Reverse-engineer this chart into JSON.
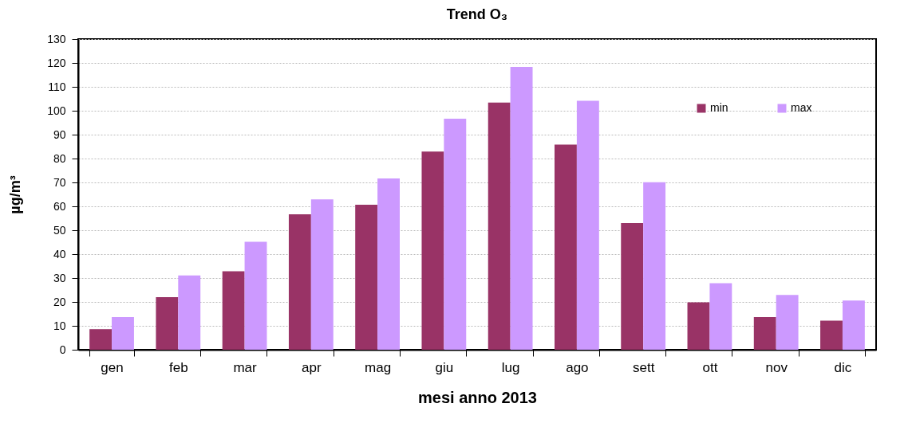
{
  "chart_data": {
    "type": "bar",
    "title": "Trend O₃",
    "xlabel": "mesi anno 2013",
    "ylabel": "µg/m³",
    "categories": [
      "gen",
      "feb",
      "mar",
      "apr",
      "mag",
      "giu",
      "lug",
      "ago",
      "sett",
      "ott",
      "nov",
      "dic"
    ],
    "series": [
      {
        "name": "min",
        "color": "#993366",
        "values": [
          8.6,
          22,
          32.8,
          56.7,
          60.7,
          82.9,
          103.4,
          85.8,
          53,
          19.8,
          13.7,
          12.2
        ]
      },
      {
        "name": "max",
        "color": "#cc99ff",
        "values": [
          13.7,
          31.1,
          45.2,
          62.9,
          71.7,
          96.7,
          118.3,
          104.2,
          70.1,
          27.8,
          22.9,
          20.6
        ]
      }
    ],
    "ylim": [
      0,
      130
    ],
    "yticks": [
      0,
      10,
      20,
      30,
      40,
      50,
      60,
      70,
      80,
      90,
      100,
      110,
      120,
      130
    ],
    "grid": "y",
    "legend": "top right"
  }
}
